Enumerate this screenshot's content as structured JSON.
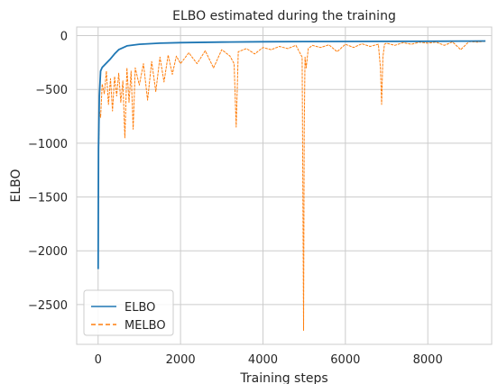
{
  "chart_data": {
    "type": "line",
    "title": "ELBO estimated during the training",
    "xlabel": "Training steps",
    "ylabel": "ELBO",
    "xlim": [
      -520,
      9550
    ],
    "ylim": [
      -2870,
      80
    ],
    "xticks": [
      0,
      2000,
      4000,
      6000,
      8000
    ],
    "yticks": [
      0,
      -500,
      -1000,
      -1500,
      -2000,
      -2500
    ],
    "ytick_labels": [
      "0",
      "−500",
      "−1000",
      "−1500",
      "−2000",
      "−2500"
    ],
    "grid": true,
    "legend_position": "lower-left",
    "series": [
      {
        "name": "ELBO",
        "color": "#1f77b4",
        "style": "solid",
        "x": [
          0,
          10,
          30,
          60,
          100,
          150,
          200,
          300,
          400,
          500,
          700,
          1000,
          1500,
          2000,
          3000,
          4000,
          5000,
          6000,
          7000,
          8000,
          9000,
          9400
        ],
        "y": [
          -2170,
          -1050,
          -560,
          -330,
          -295,
          -275,
          -255,
          -215,
          -170,
          -130,
          -95,
          -80,
          -70,
          -65,
          -60,
          -57,
          -55,
          -54,
          -53,
          -52,
          -51,
          -50
        ]
      },
      {
        "name": "MELBO",
        "color": "#ff7f0e",
        "style": "dashed",
        "x": [
          0,
          10,
          30,
          60,
          100,
          150,
          200,
          250,
          300,
          350,
          400,
          450,
          500,
          550,
          600,
          650,
          700,
          750,
          800,
          850,
          900,
          1000,
          1100,
          1200,
          1300,
          1400,
          1500,
          1600,
          1700,
          1800,
          1900,
          2000,
          2200,
          2400,
          2600,
          2800,
          3000,
          3200,
          3300,
          3350,
          3400,
          3600,
          3800,
          4000,
          4200,
          4400,
          4600,
          4800,
          4950,
          4970,
          4985,
          5000,
          5020,
          5050,
          5100,
          5200,
          5400,
          5600,
          5800,
          6000,
          6200,
          6400,
          6600,
          6800,
          6850,
          6880,
          6910,
          6950,
          7000,
          7200,
          7400,
          7600,
          7800,
          8000,
          8200,
          8400,
          8600,
          8800,
          9000,
          9200,
          9400
        ],
        "y": [
          -2170,
          -1200,
          -700,
          -760,
          -450,
          -540,
          -330,
          -640,
          -400,
          -700,
          -380,
          -560,
          -350,
          -620,
          -420,
          -950,
          -300,
          -620,
          -330,
          -870,
          -300,
          -460,
          -260,
          -600,
          -240,
          -520,
          -200,
          -430,
          -180,
          -360,
          -190,
          -260,
          -160,
          -260,
          -140,
          -300,
          -130,
          -190,
          -260,
          -850,
          -150,
          -120,
          -170,
          -110,
          -130,
          -100,
          -120,
          -90,
          -200,
          -1600,
          -2740,
          -900,
          -200,
          -300,
          -120,
          -90,
          -110,
          -85,
          -150,
          -80,
          -110,
          -75,
          -100,
          -80,
          -300,
          -640,
          -200,
          -80,
          -70,
          -90,
          -65,
          -80,
          -60,
          -70,
          -60,
          -90,
          -58,
          -130,
          -55,
          -60,
          -52
        ]
      }
    ]
  }
}
